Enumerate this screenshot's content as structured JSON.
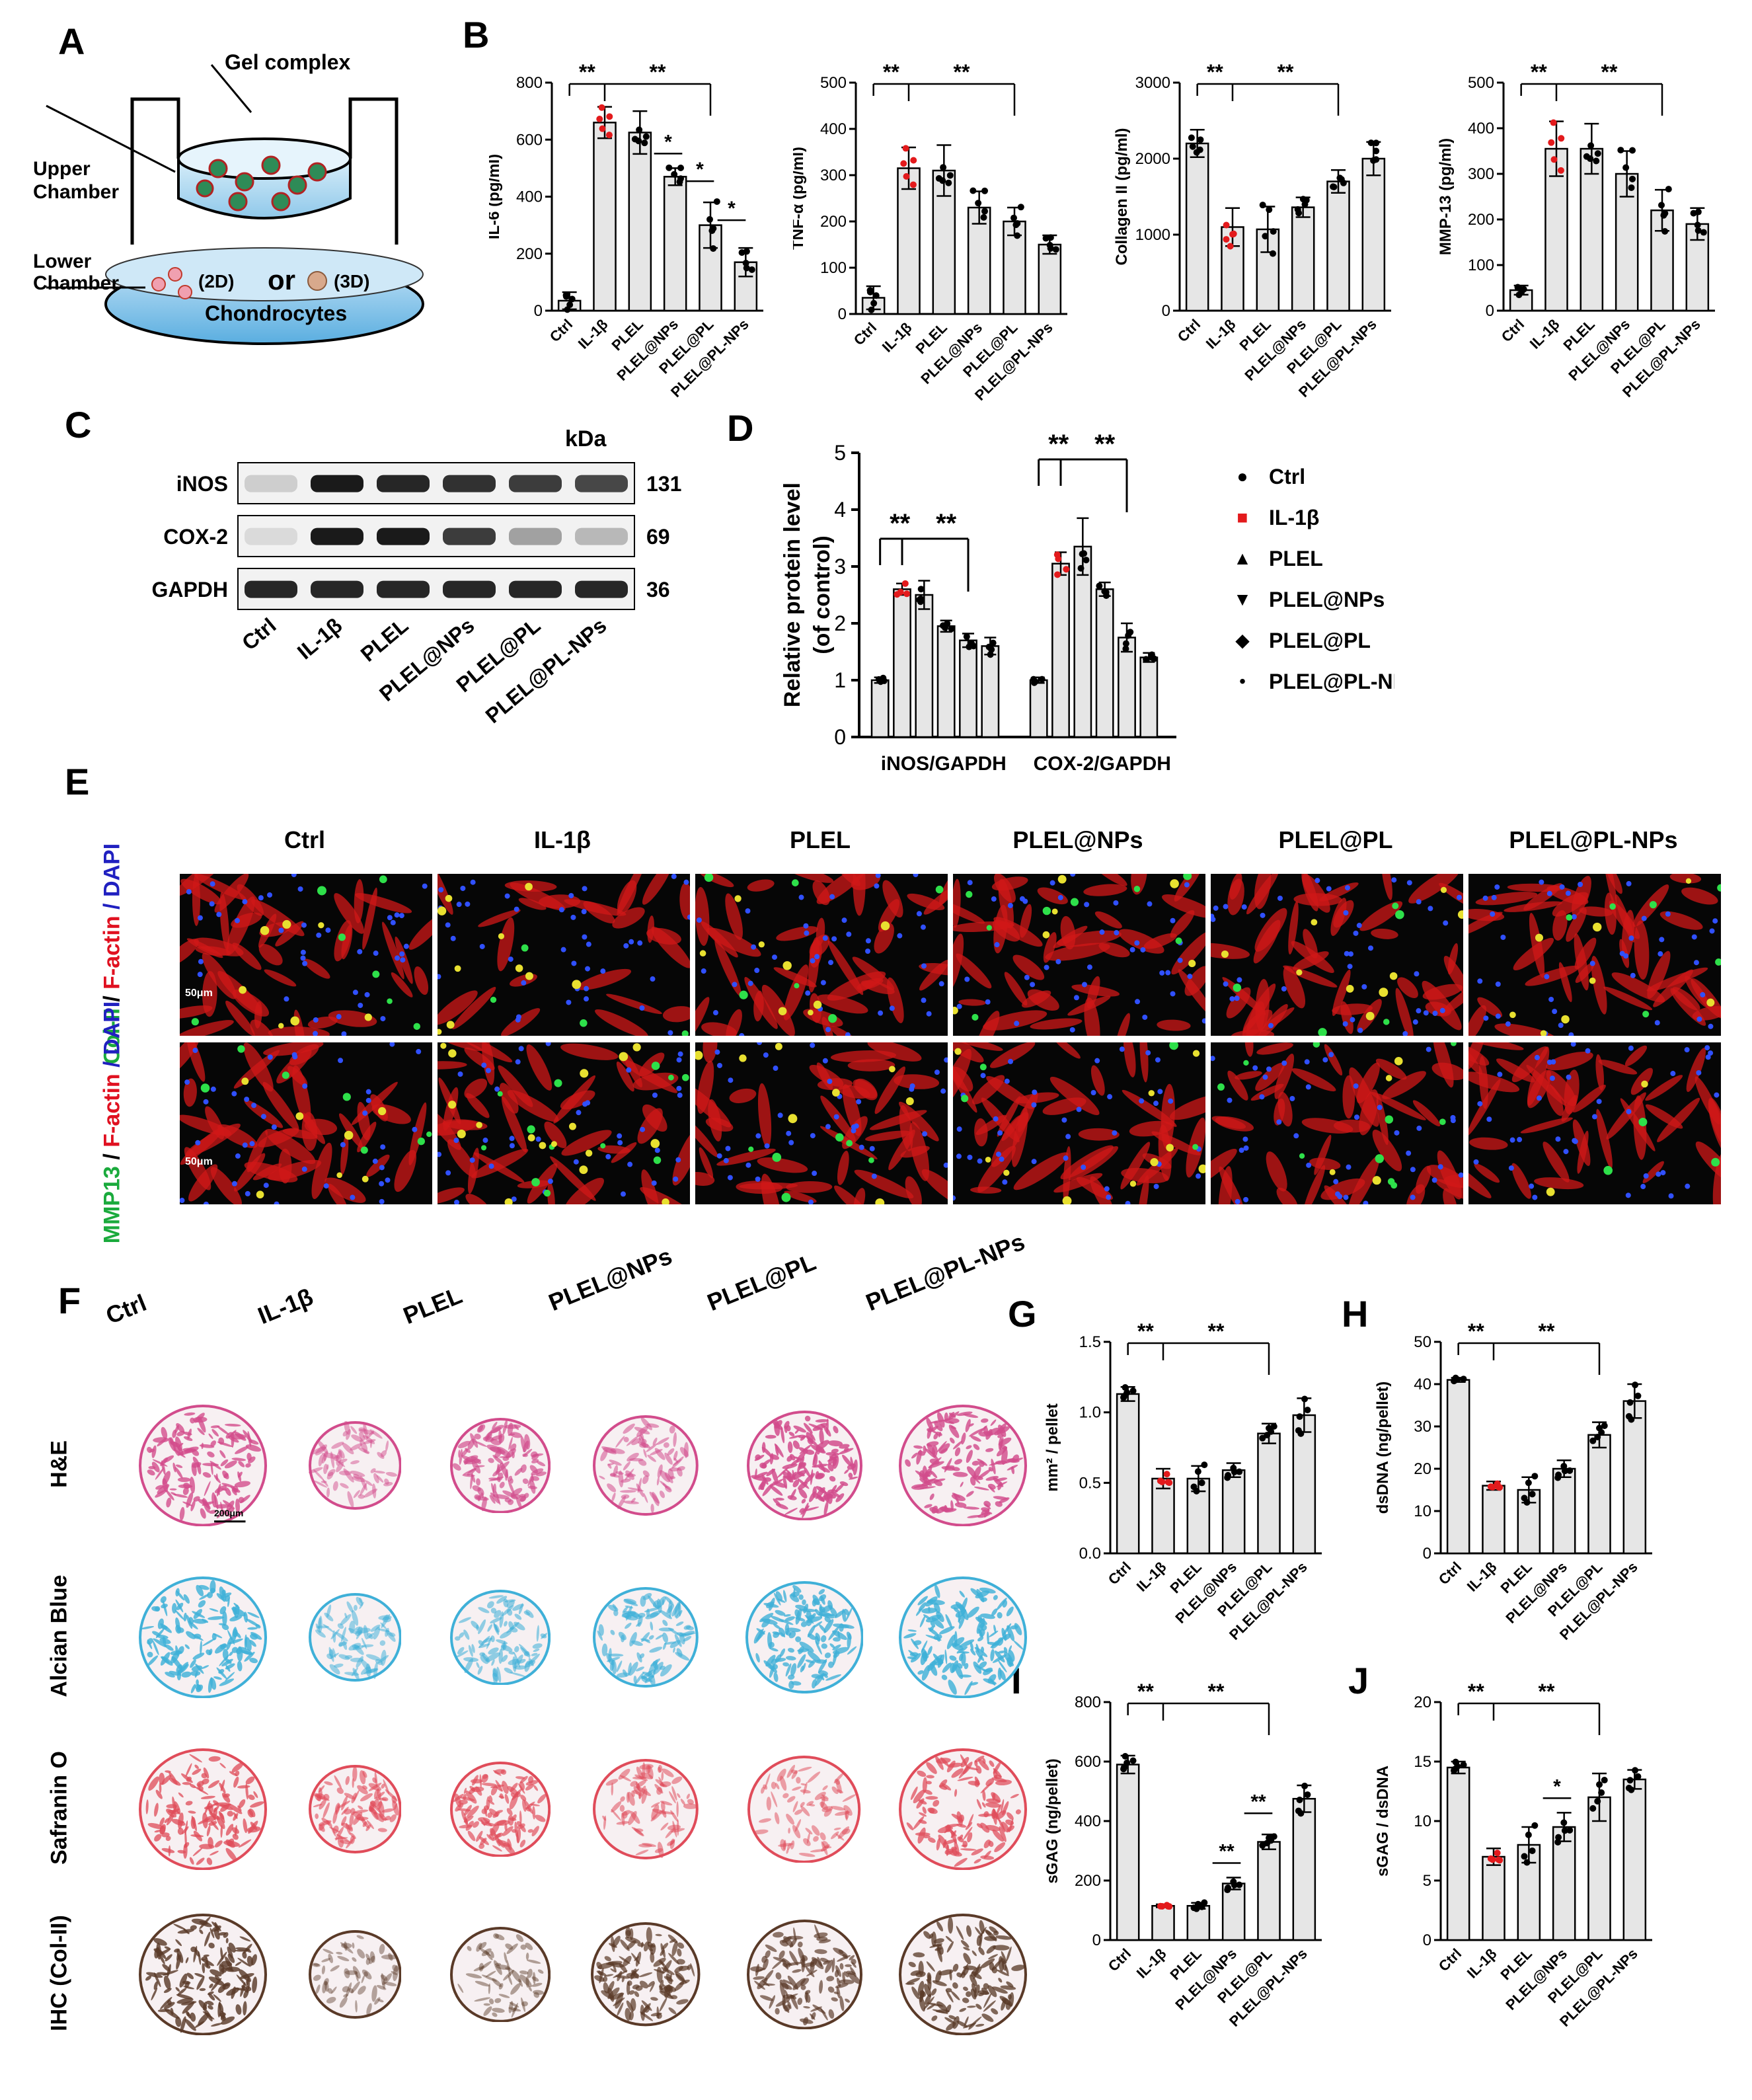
{
  "panels": {
    "A": "A",
    "B": "B",
    "C": "C",
    "D": "D",
    "E": "E",
    "F": "F",
    "G": "G",
    "H": "H",
    "I": "I",
    "J": "J"
  },
  "panelA": {
    "gel_complex": "Gel complex",
    "upper_chamber": [
      "Upper",
      "Chamber"
    ],
    "lower_chamber": [
      "Lower",
      "Chamber"
    ],
    "twoD": "(2D)",
    "or": "or",
    "threeD": "(3D)",
    "chondrocytes": "Chondrocytes",
    "colors": {
      "upper": "#a8d4ec",
      "lower": "#7fc0e8",
      "particle": "#d9534f"
    }
  },
  "groups": [
    "Ctrl",
    "IL-1β",
    "PLEL",
    "PLEL@NPs",
    "PLEL@PL",
    "PLEL@PL-NPs"
  ],
  "bar_colors": {
    "bar": "#e6e6e6",
    "highlight": "#e31a1c",
    "dot": "#000000"
  },
  "chart_data": [
    {
      "type": "bar",
      "id": "IL6",
      "ylabel": "IL-6 (pg/ml)",
      "ylim": [
        0,
        800
      ],
      "yticks": [
        0,
        200,
        400,
        600,
        800
      ],
      "categories": [
        "Ctrl",
        "IL-1β",
        "PLEL",
        "PLEL@NPs",
        "PLEL@PL",
        "PLEL@PL-NPs"
      ],
      "values": [
        35,
        660,
        625,
        470,
        300,
        170
      ],
      "errors": [
        30,
        55,
        75,
        30,
        80,
        50
      ],
      "annotations": [
        "**",
        "**",
        "*",
        "*",
        "*"
      ]
    },
    {
      "type": "bar",
      "id": "TNFa",
      "ylabel": "TNF-α (pg/ml)",
      "ylim": [
        0,
        500
      ],
      "yticks": [
        0,
        100,
        200,
        300,
        400,
        500
      ],
      "categories": [
        "Ctrl",
        "IL-1β",
        "PLEL",
        "PLEL@NPs",
        "PLEL@PL",
        "PLEL@PL-NPs"
      ],
      "values": [
        35,
        315,
        310,
        230,
        200,
        150
      ],
      "errors": [
        25,
        45,
        55,
        35,
        30,
        20
      ],
      "annotations": [
        "**",
        "**"
      ]
    },
    {
      "type": "bar",
      "id": "Col2",
      "ylabel": "Collagen II (pg/ml)",
      "ylim": [
        0,
        3000
      ],
      "yticks": [
        0,
        1000,
        2000,
        3000
      ],
      "categories": [
        "Ctrl",
        "IL-1β",
        "PLEL",
        "PLEL@NPs",
        "PLEL@PL",
        "PLEL@PL-NPs"
      ],
      "values": [
        2200,
        1100,
        1070,
        1360,
        1700,
        2000
      ],
      "errors": [
        180,
        250,
        300,
        130,
        150,
        220
      ],
      "annotations": [
        "**",
        "**"
      ]
    },
    {
      "type": "bar",
      "id": "MMP13",
      "ylabel": "MMP-13 (pg/ml)",
      "ylim": [
        0,
        500
      ],
      "yticks": [
        0,
        100,
        200,
        300,
        400,
        500
      ],
      "categories": [
        "Ctrl",
        "IL-1β",
        "PLEL",
        "PLEL@NPs",
        "PLEL@PL",
        "PLEL@PL-NPs"
      ],
      "values": [
        45,
        355,
        355,
        300,
        220,
        190
      ],
      "errors": [
        10,
        60,
        55,
        50,
        45,
        35
      ],
      "annotations": [
        "**",
        "**"
      ]
    },
    {
      "type": "bar",
      "id": "WB",
      "ylabel": "Relative protein level (of control)",
      "ylim": [
        0,
        5
      ],
      "yticks": [
        0,
        1,
        2,
        3,
        4,
        5
      ],
      "categories": [
        "iNOS/GAPDH",
        "COX-2/GAPDH"
      ],
      "series": [
        {
          "name": "Ctrl",
          "values": [
            1.0,
            1.0
          ]
        },
        {
          "name": "IL-1β",
          "values": [
            2.6,
            3.05
          ]
        },
        {
          "name": "PLEL",
          "values": [
            2.5,
            3.35
          ]
        },
        {
          "name": "PLEL@NPs",
          "values": [
            1.95,
            2.6
          ]
        },
        {
          "name": "PLEL@PL",
          "values": [
            1.7,
            1.75
          ]
        },
        {
          "name": "PLEL@PL-NPs",
          "values": [
            1.6,
            1.4
          ]
        }
      ],
      "errors": [
        [
          0.05,
          0.05
        ],
        [
          0.1,
          0.2
        ],
        [
          0.25,
          0.5
        ],
        [
          0.1,
          0.12
        ],
        [
          0.12,
          0.25
        ],
        [
          0.15,
          0.08
        ]
      ],
      "annotations": [
        "**",
        "**",
        "**",
        "**"
      ],
      "legend_position": "right"
    },
    {
      "type": "bar",
      "id": "G",
      "ylabel": "mm² / pellet",
      "ylim": [
        0,
        1.5
      ],
      "yticks": [
        "0.0",
        "0.5",
        "1.0",
        "1.5"
      ],
      "categories": [
        "Ctrl",
        "IL-1β",
        "PLEL",
        "PLEL@NPs",
        "PLEL@PL",
        "PLEL@PL-NPs"
      ],
      "values": [
        1.13,
        0.53,
        0.53,
        0.59,
        0.85,
        0.98
      ],
      "errors": [
        0.05,
        0.07,
        0.09,
        0.05,
        0.07,
        0.12
      ],
      "annotations": [
        "**",
        "**"
      ]
    },
    {
      "type": "bar",
      "id": "H",
      "ylabel": "dsDNA (ng/pellet)",
      "ylim": [
        0,
        50
      ],
      "yticks": [
        0,
        10,
        20,
        30,
        40,
        50
      ],
      "categories": [
        "Ctrl",
        "IL-1β",
        "PLEL",
        "PLEL@NPs",
        "PLEL@PL",
        "PLEL@PL-NPs"
      ],
      "values": [
        41,
        16,
        15,
        20,
        28,
        36
      ],
      "errors": [
        0.5,
        1,
        3,
        2,
        3,
        4
      ],
      "annotations": [
        "**",
        "**"
      ]
    },
    {
      "type": "bar",
      "id": "I",
      "ylabel": "sGAG (ng/pellet)",
      "ylim": [
        0,
        800
      ],
      "yticks": [
        0,
        200,
        400,
        600,
        800
      ],
      "categories": [
        "Ctrl",
        "IL-1β",
        "PLEL",
        "PLEL@NPs",
        "PLEL@PL",
        "PLEL@PL-NPs"
      ],
      "values": [
        590,
        115,
        115,
        190,
        330,
        475
      ],
      "errors": [
        30,
        5,
        10,
        20,
        25,
        45
      ],
      "annotations": [
        "**",
        "**",
        "**",
        "**"
      ]
    },
    {
      "type": "bar",
      "id": "J",
      "ylabel": "sGAG / dsDNA",
      "ylim": [
        0,
        20
      ],
      "yticks": [
        0,
        5,
        10,
        15,
        20
      ],
      "categories": [
        "Ctrl",
        "IL-1β",
        "PLEL",
        "PLEL@NPs",
        "PLEL@PL",
        "PLEL@PL-NPs"
      ],
      "values": [
        14.5,
        7.0,
        8.0,
        9.5,
        12.0,
        13.5
      ],
      "errors": [
        0.5,
        0.7,
        1.5,
        1.2,
        2,
        0.8
      ],
      "annotations": [
        "**",
        "**",
        "*"
      ]
    }
  ],
  "panelC": {
    "kda": "kDa",
    "rows": [
      {
        "label": "iNOS",
        "kda": "131"
      },
      {
        "label": "COX-2",
        "kda": "69"
      },
      {
        "label": "GAPDH",
        "kda": "36"
      }
    ],
    "lanes": [
      "Ctrl",
      "IL-1β",
      "PLEL",
      "PLEL@NPs",
      "PLEL@PL",
      "PLEL@PL-NPs"
    ],
    "intensity": [
      [
        0.15,
        0.95,
        0.9,
        0.85,
        0.8,
        0.75
      ],
      [
        0.1,
        0.95,
        0.95,
        0.8,
        0.35,
        0.25
      ],
      [
        0.9,
        0.9,
        0.9,
        0.9,
        0.9,
        0.9
      ]
    ]
  },
  "panelE": {
    "groups": [
      "Ctrl",
      "IL-1β",
      "PLEL",
      "PLEL@NPs",
      "PLEL@PL",
      "PLEL@PL-NPs"
    ],
    "row1": {
      "a": "Col-II",
      "b": " / ",
      "c": "F-actin",
      "d": "/ DAPI"
    },
    "row2": {
      "a": "MMP13",
      "b": " / ",
      "c": "F-actin",
      "d": "/ DAPI"
    },
    "scale": "50μm"
  },
  "panelF": {
    "groups": [
      "Ctrl",
      "IL-1β",
      "PLEL",
      "PLEL@NPs",
      "PLEL@PL",
      "PLEL@PL-NPs"
    ],
    "stains": [
      "H&E",
      "Alcian Blue",
      "Safranin O",
      "IHC (Col-II)"
    ],
    "scale": "200μm",
    "colors": [
      "#d24c8c",
      "#3fb0d8",
      "#e04c5a",
      "#5a3a28"
    ],
    "sizes": [
      [
        1.0,
        0.72,
        0.78,
        0.82,
        0.9,
        1.0
      ],
      [
        1.0,
        0.72,
        0.78,
        0.82,
        0.92,
        1.0
      ],
      [
        1.0,
        0.72,
        0.78,
        0.82,
        0.88,
        1.0
      ],
      [
        1.0,
        0.72,
        0.78,
        0.85,
        0.9,
        1.0
      ]
    ],
    "density": [
      [
        0.8,
        0.25,
        0.6,
        0.35,
        0.9,
        0.85
      ],
      [
        0.85,
        0.3,
        0.4,
        0.5,
        0.8,
        0.85
      ],
      [
        0.75,
        0.45,
        0.6,
        0.35,
        0.3,
        0.7
      ],
      [
        0.85,
        0.15,
        0.2,
        0.65,
        0.6,
        0.75
      ]
    ]
  }
}
